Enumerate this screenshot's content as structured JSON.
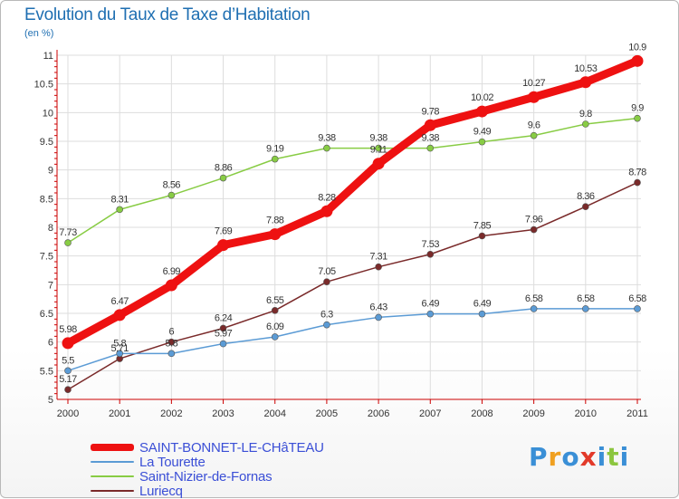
{
  "header": {
    "title": "Evolution du Taux de Taxe d’Habitation",
    "unit": "(en %)"
  },
  "colors": {
    "title": "#1f6fb2",
    "axis": "#cc0000",
    "grid": "#dddddd",
    "legend_text": "#3b4fd6"
  },
  "chart_data": {
    "type": "line",
    "title": "Evolution du Taux de Taxe d’Habitation",
    "xlabel": "",
    "ylabel": "(en %)",
    "x": [
      "2000",
      "2001",
      "2002",
      "2003",
      "2004",
      "2005",
      "2006",
      "2007",
      "2008",
      "2009",
      "2010",
      "2011"
    ],
    "ylim": [
      5,
      11
    ],
    "yticks": [
      "5",
      "5.5",
      "6",
      "6.5",
      "7",
      "7.5",
      "8",
      "8.5",
      "9",
      "9.5",
      "10",
      "10.5",
      "11"
    ],
    "grid": true,
    "legend_position": "bottom-left",
    "series": [
      {
        "name": "SAINT-BONNET-LE-CHâTEAU",
        "color": "#ee1111",
        "values": [
          5.98,
          6.47,
          6.99,
          7.69,
          7.88,
          8.28,
          9.11,
          9.78,
          10.02,
          10.27,
          10.53,
          10.9
        ],
        "labels": [
          "5.98",
          "6.47",
          "6.99",
          "7.69",
          "7.88",
          "8.28",
          "9.11",
          "9.78",
          "10.02",
          "10.27",
          "10.53",
          "10.9"
        ]
      },
      {
        "name": "La Tourette",
        "color": "#5b9bd5",
        "values": [
          5.5,
          5.8,
          5.8,
          5.97,
          6.09,
          6.3,
          6.43,
          6.49,
          6.49,
          6.58,
          6.58,
          6.58
        ],
        "labels": [
          "5.5",
          "5.8",
          "5.8",
          "5.97",
          "6.09",
          "6.3",
          "6.43",
          "6.49",
          "6.49",
          "6.58",
          "6.58",
          "6.58"
        ]
      },
      {
        "name": "Saint-Nizier-de-Fornas",
        "color": "#88cc44",
        "values": [
          7.73,
          8.31,
          8.56,
          8.86,
          9.19,
          9.38,
          9.38,
          9.38,
          9.49,
          9.6,
          9.8,
          9.9
        ],
        "labels": [
          "7.73",
          "8.31",
          "8.56",
          "8.86",
          "9.19",
          "9.38",
          "9.38",
          "9.38",
          "9.49",
          "9.6",
          "9.8",
          "9.9"
        ]
      },
      {
        "name": "Luriecq",
        "color": "#7a2a2a",
        "values": [
          5.17,
          5.71,
          6,
          6.24,
          6.55,
          7.05,
          7.31,
          7.53,
          7.85,
          7.96,
          8.36,
          8.78
        ],
        "labels": [
          "5.17",
          "5.71",
          "6",
          "6.24",
          "6.55",
          "7.05",
          "7.31",
          "7.53",
          "7.85",
          "7.96",
          "8.36",
          "8.78"
        ]
      }
    ]
  },
  "logo": {
    "letters": [
      "P",
      "r",
      "o",
      "x",
      "i",
      "t",
      "i"
    ],
    "colors": [
      "#3a8fd6",
      "#f0a020",
      "#3a8fd6",
      "#e23a2a",
      "#3a8fd6",
      "#8cc63f",
      "#3a8fd6"
    ]
  }
}
